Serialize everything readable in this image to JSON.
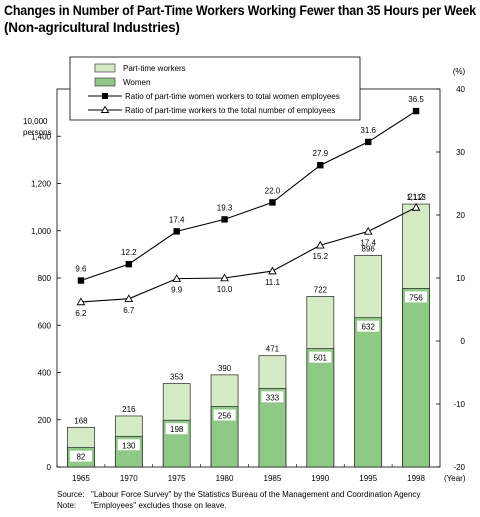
{
  "title_line1": "Changes in Number of Part-Time Workers Working Fewer than 35 Hours per Week",
  "title_line2": "(Non-agricultural Industries)",
  "chart_data": {
    "type": "bar",
    "categories": [
      "1965",
      "1970",
      "1975",
      "1980",
      "1985",
      "1990",
      "1995",
      "1998"
    ],
    "x_unit": "(Year)",
    "left_axis": {
      "unit_line1": "10,000",
      "unit_line2": "persons",
      "range": [
        0,
        1600
      ],
      "ticks": [
        0,
        200,
        400,
        600,
        800,
        1000,
        1200,
        1400
      ],
      "tick_labels": [
        "0",
        "200",
        "400",
        "600",
        "800",
        "1,000",
        "1,200",
        "1,400"
      ]
    },
    "right_axis": {
      "unit": "(%)",
      "range": [
        -20,
        40
      ],
      "ticks": [
        -20,
        -10,
        0,
        10,
        20,
        30,
        40
      ],
      "tick_labels": [
        "-20",
        "-10",
        "0",
        "10",
        "20",
        "30",
        "40"
      ]
    },
    "series": [
      {
        "name": "Part-time workers",
        "type": "bar",
        "axis": "left",
        "color": "#d5ebc6",
        "values": [
          168,
          216,
          353,
          390,
          471,
          722,
          896,
          1113
        ],
        "labels": [
          "168",
          "216",
          "353",
          "390",
          "471",
          "722",
          "896",
          "1,113"
        ]
      },
      {
        "name": "Women",
        "type": "bar",
        "axis": "left",
        "color": "#8fc986",
        "values": [
          82,
          130,
          198,
          256,
          333,
          501,
          632,
          756
        ],
        "labels": [
          "82",
          "130",
          "198",
          "256",
          "333",
          "501",
          "632",
          "756"
        ]
      },
      {
        "name": "Ratio of part-time women workers to total women employees",
        "type": "line",
        "axis": "right",
        "marker": "filled-square",
        "values": [
          9.6,
          12.2,
          17.4,
          19.3,
          22.0,
          27.9,
          31.6,
          36.5
        ],
        "labels": [
          "9.6",
          "12.2",
          "17.4",
          "19.3",
          "22.0",
          "27.9",
          "31.6",
          "36.5"
        ]
      },
      {
        "name": "Ratio of part-time workers to the total number of employees",
        "type": "line",
        "axis": "right",
        "marker": "open-triangle",
        "values": [
          6.2,
          6.7,
          9.9,
          10.0,
          11.1,
          15.2,
          17.4,
          21.2
        ],
        "labels": [
          "6.2",
          "6.7",
          "9.9",
          "10.0",
          "11.1",
          "15.2",
          "17.4",
          "21.2"
        ]
      }
    ],
    "legend_position": "top-left"
  },
  "notes": {
    "source_label": "Source:",
    "source_text": "\"Labour Force Survey\" by the Statistics Bureau of the Management and Coordination Agency",
    "note_label": "Note:",
    "note_text": "\"Employees\" excludes those on leave."
  }
}
